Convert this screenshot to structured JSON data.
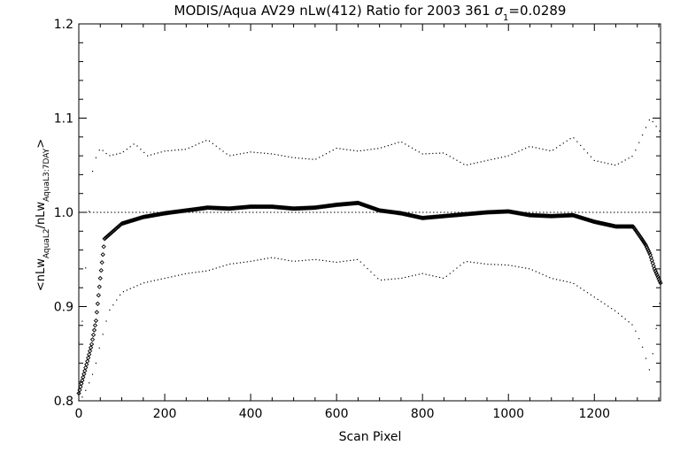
{
  "chart_data": {
    "type": "scatter",
    "title_main": "MODIS/Aqua AV29 nLw(412) Ratio for 2003 361 ",
    "title_sigma": "σ",
    "title_sigma_sub": "1",
    "title_sigma_value": "=0.0289",
    "xlabel": "Scan Pixel",
    "ylabel_parts": [
      "<nLw",
      "AquaL2",
      "/nLw",
      "AquaL3:7DAY",
      ">"
    ],
    "xlim": [
      0,
      1354
    ],
    "ylim": [
      0.8,
      1.2
    ],
    "x_ticks": [
      0,
      200,
      400,
      600,
      800,
      1000,
      1200
    ],
    "x_tick_labels": [
      "0",
      "200",
      "400",
      "600",
      "800",
      "1000",
      "1200"
    ],
    "y_ticks": [
      0.8,
      0.9,
      1.0,
      1.1,
      1.2
    ],
    "y_tick_labels": [
      "0.8",
      "0.9",
      "1.0",
      "1.1",
      "1.2"
    ],
    "reference_line": 1.0,
    "series": [
      {
        "role": "mean",
        "marker": "diamond",
        "points": [
          [
            0,
            0.808
          ],
          [
            10,
            0.825
          ],
          [
            20,
            0.842
          ],
          [
            30,
            0.86
          ],
          [
            40,
            0.885
          ],
          [
            50,
            0.93
          ],
          [
            60,
            0.972
          ],
          [
            80,
            0.98
          ],
          [
            100,
            0.988
          ],
          [
            150,
            0.995
          ],
          [
            200,
            0.999
          ],
          [
            250,
            1.002
          ],
          [
            300,
            1.005
          ],
          [
            350,
            1.004
          ],
          [
            400,
            1.006
          ],
          [
            450,
            1.006
          ],
          [
            500,
            1.004
          ],
          [
            550,
            1.005
          ],
          [
            600,
            1.008
          ],
          [
            650,
            1.01
          ],
          [
            700,
            1.002
          ],
          [
            750,
            0.999
          ],
          [
            800,
            0.994
          ],
          [
            850,
            0.996
          ],
          [
            900,
            0.998
          ],
          [
            950,
            1.0
          ],
          [
            1000,
            1.001
          ],
          [
            1050,
            0.997
          ],
          [
            1100,
            0.996
          ],
          [
            1150,
            0.997
          ],
          [
            1200,
            0.99
          ],
          [
            1250,
            0.985
          ],
          [
            1290,
            0.985
          ],
          [
            1310,
            0.972
          ],
          [
            1320,
            0.965
          ],
          [
            1330,
            0.955
          ],
          [
            1340,
            0.94
          ],
          [
            1354,
            0.925
          ]
        ]
      },
      {
        "role": "upper",
        "marker": "dot",
        "points": [
          [
            0,
            0.862
          ],
          [
            10,
            0.89
          ],
          [
            20,
            0.975
          ],
          [
            30,
            1.04
          ],
          [
            40,
            1.058
          ],
          [
            50,
            1.068
          ],
          [
            70,
            1.06
          ],
          [
            100,
            1.063
          ],
          [
            130,
            1.073
          ],
          [
            160,
            1.06
          ],
          [
            200,
            1.065
          ],
          [
            250,
            1.067
          ],
          [
            300,
            1.077
          ],
          [
            350,
            1.06
          ],
          [
            400,
            1.064
          ],
          [
            450,
            1.062
          ],
          [
            500,
            1.058
          ],
          [
            550,
            1.056
          ],
          [
            600,
            1.068
          ],
          [
            650,
            1.065
          ],
          [
            700,
            1.068
          ],
          [
            750,
            1.075
          ],
          [
            800,
            1.062
          ],
          [
            850,
            1.063
          ],
          [
            900,
            1.05
          ],
          [
            950,
            1.055
          ],
          [
            1000,
            1.06
          ],
          [
            1050,
            1.07
          ],
          [
            1100,
            1.065
          ],
          [
            1150,
            1.08
          ],
          [
            1200,
            1.055
          ],
          [
            1250,
            1.05
          ],
          [
            1290,
            1.06
          ],
          [
            1310,
            1.08
          ],
          [
            1330,
            1.1
          ],
          [
            1354,
            1.085
          ]
        ]
      },
      {
        "role": "lower",
        "marker": "dot",
        "points": [
          [
            0,
            0.8
          ],
          [
            10,
            0.805
          ],
          [
            20,
            0.815
          ],
          [
            30,
            0.825
          ],
          [
            40,
            0.84
          ],
          [
            50,
            0.86
          ],
          [
            70,
            0.895
          ],
          [
            100,
            0.915
          ],
          [
            150,
            0.925
          ],
          [
            200,
            0.93
          ],
          [
            250,
            0.935
          ],
          [
            300,
            0.938
          ],
          [
            350,
            0.945
          ],
          [
            400,
            0.948
          ],
          [
            450,
            0.952
          ],
          [
            500,
            0.948
          ],
          [
            550,
            0.95
          ],
          [
            600,
            0.947
          ],
          [
            650,
            0.95
          ],
          [
            700,
            0.928
          ],
          [
            750,
            0.93
          ],
          [
            800,
            0.935
          ],
          [
            850,
            0.93
          ],
          [
            900,
            0.948
          ],
          [
            950,
            0.945
          ],
          [
            1000,
            0.944
          ],
          [
            1050,
            0.94
          ],
          [
            1100,
            0.93
          ],
          [
            1150,
            0.925
          ],
          [
            1200,
            0.91
          ],
          [
            1250,
            0.895
          ],
          [
            1290,
            0.88
          ],
          [
            1310,
            0.86
          ],
          [
            1330,
            0.83
          ],
          [
            1354,
            0.91
          ]
        ]
      }
    ]
  }
}
